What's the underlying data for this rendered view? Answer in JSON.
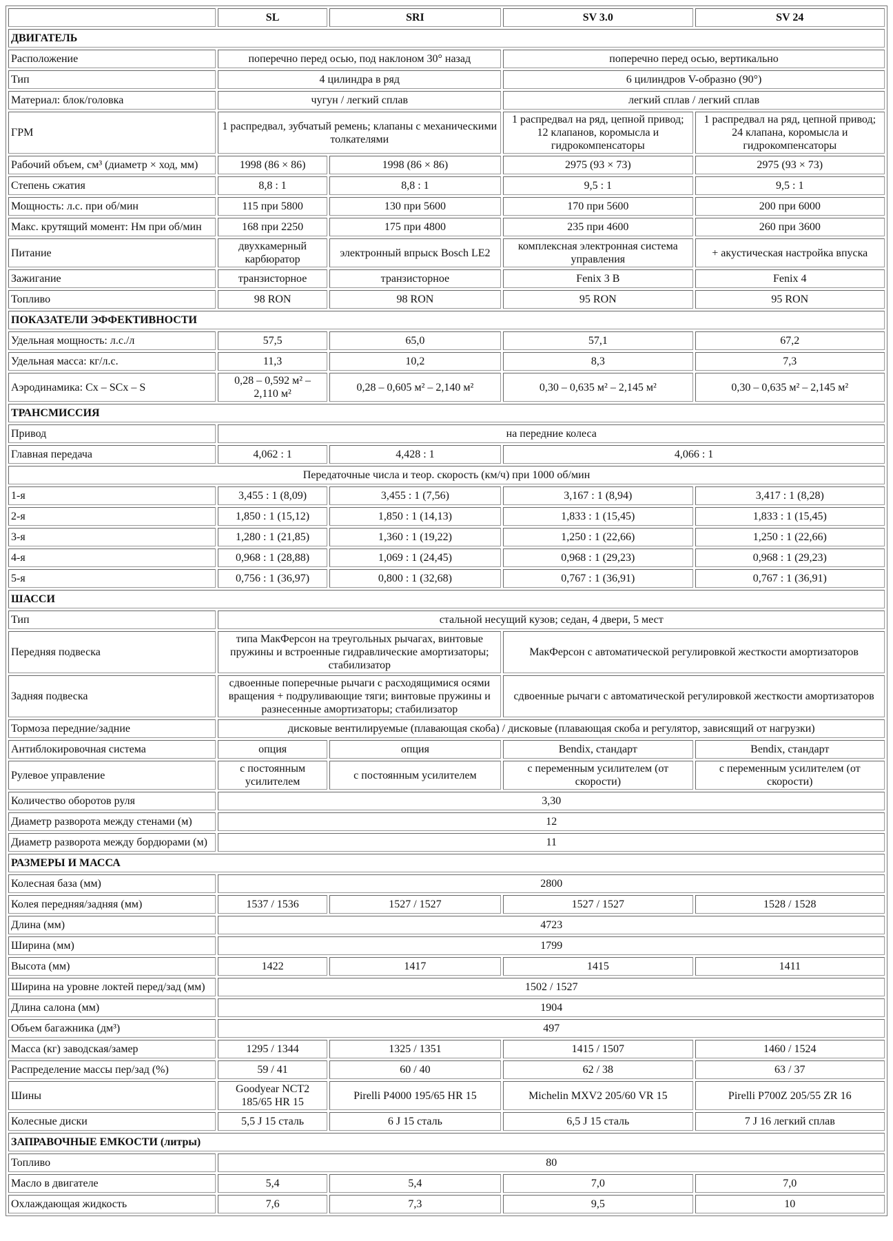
{
  "header": [
    "",
    "SL",
    "SRI",
    "SV 3.0",
    "SV 24"
  ],
  "rows": [
    {
      "section": "ДВИГАТЕЛЬ"
    },
    {
      "label": "Расположение",
      "cells": [
        {
          "t": "поперечно перед осью, под наклоном 30° назад",
          "s": 2
        },
        {
          "t": "поперечно перед осью, вертикально",
          "s": 2
        }
      ]
    },
    {
      "label": "Тип",
      "cells": [
        {
          "t": "4 цилиндра в ряд",
          "s": 2
        },
        {
          "t": "6 цилиндров V-образно (90°)",
          "s": 2
        }
      ]
    },
    {
      "label": "Материал: блок/головка",
      "cells": [
        {
          "t": "чугун / легкий сплав",
          "s": 2
        },
        {
          "t": "легкий сплав / легкий сплав",
          "s": 2
        }
      ]
    },
    {
      "label": "ГРМ",
      "cells": [
        {
          "t": "1 распредвал, зубчатый ремень; клапаны с механическими толкателями",
          "s": 2
        },
        {
          "t": "1 распредвал на ряд, цепной привод; 12 клапанов, коромысла и гидрокомпенсаторы",
          "s": 1
        },
        {
          "t": "1 распредвал на ряд, цепной привод; 24 клапана, коромысла и гидрокомпенсаторы",
          "s": 1
        }
      ]
    },
    {
      "label": "Рабочий объем, см³ (диаметр × ход, мм)",
      "cells": [
        {
          "t": "1998 (86 × 86)",
          "s": 1
        },
        {
          "t": "1998 (86 × 86)",
          "s": 1
        },
        {
          "t": "2975 (93 × 73)",
          "s": 1
        },
        {
          "t": "2975 (93 × 73)",
          "s": 1
        }
      ]
    },
    {
      "label": "Степень сжатия",
      "cells": [
        {
          "t": "8,8 : 1",
          "s": 1
        },
        {
          "t": "8,8 : 1",
          "s": 1
        },
        {
          "t": "9,5 : 1",
          "s": 1
        },
        {
          "t": "9,5 : 1",
          "s": 1
        }
      ]
    },
    {
      "label": "Мощность: л.с. при об/мин",
      "cells": [
        {
          "t": "115 при 5800",
          "s": 1
        },
        {
          "t": "130 при 5600",
          "s": 1
        },
        {
          "t": "170 при 5600",
          "s": 1
        },
        {
          "t": "200 при 6000",
          "s": 1
        }
      ]
    },
    {
      "label": "Макс. крутящий момент: Нм при об/мин",
      "cells": [
        {
          "t": "168 при 2250",
          "s": 1
        },
        {
          "t": "175 при 4800",
          "s": 1
        },
        {
          "t": "235 при 4600",
          "s": 1
        },
        {
          "t": "260 при 3600",
          "s": 1
        }
      ]
    },
    {
      "label": "Питание",
      "cells": [
        {
          "t": "двухкамерный карбюратор",
          "s": 1
        },
        {
          "t": "электронный впрыск Bosch LE2",
          "s": 1
        },
        {
          "t": "комплексная электронная система управления",
          "s": 1
        },
        {
          "t": "+ акустическая настройка впуска",
          "s": 1
        }
      ]
    },
    {
      "label": "Зажигание",
      "cells": [
        {
          "t": "транзисторное",
          "s": 1
        },
        {
          "t": "транзисторное",
          "s": 1
        },
        {
          "t": "Fenix 3 B",
          "s": 1
        },
        {
          "t": "Fenix 4",
          "s": 1
        }
      ]
    },
    {
      "label": "Топливо",
      "cells": [
        {
          "t": "98 RON",
          "s": 1
        },
        {
          "t": "98 RON",
          "s": 1
        },
        {
          "t": "95 RON",
          "s": 1
        },
        {
          "t": "95 RON",
          "s": 1
        }
      ]
    },
    {
      "section": "ПОКАЗАТЕЛИ ЭФФЕКТИВНОСТИ"
    },
    {
      "label": "Удельная мощность: л.с./л",
      "cells": [
        {
          "t": "57,5",
          "s": 1
        },
        {
          "t": "65,0",
          "s": 1
        },
        {
          "t": "57,1",
          "s": 1
        },
        {
          "t": "67,2",
          "s": 1
        }
      ]
    },
    {
      "label": "Удельная масса: кг/л.с.",
      "cells": [
        {
          "t": "11,3",
          "s": 1
        },
        {
          "t": "10,2",
          "s": 1
        },
        {
          "t": "8,3",
          "s": 1
        },
        {
          "t": "7,3",
          "s": 1
        }
      ]
    },
    {
      "label": "Аэродинамика: Cx – SCx – S",
      "cells": [
        {
          "t": "0,28 – 0,592 м² – 2,110 м²",
          "s": 1
        },
        {
          "t": "0,28 – 0,605 м² – 2,140 м²",
          "s": 1
        },
        {
          "t": "0,30 – 0,635 м² – 2,145 м²",
          "s": 1
        },
        {
          "t": "0,30 – 0,635 м² – 2,145 м²",
          "s": 1
        }
      ]
    },
    {
      "section": "ТРАНСМИССИЯ"
    },
    {
      "label": "Привод",
      "cells": [
        {
          "t": "на передние колеса",
          "s": 4
        }
      ]
    },
    {
      "label": "Главная передача",
      "cells": [
        {
          "t": "4,062 : 1",
          "s": 1
        },
        {
          "t": "4,428 : 1",
          "s": 1
        },
        {
          "t": "4,066 : 1",
          "s": 2
        }
      ]
    },
    {
      "subheader": "Передаточные числа и теор. скорость (км/ч) при 1000 об/мин"
    },
    {
      "label": "1-я",
      "cells": [
        {
          "t": "3,455 : 1 (8,09)",
          "s": 1
        },
        {
          "t": "3,455 : 1 (7,56)",
          "s": 1
        },
        {
          "t": "3,167 : 1 (8,94)",
          "s": 1
        },
        {
          "t": "3,417 : 1 (8,28)",
          "s": 1
        }
      ]
    },
    {
      "label": "2-я",
      "cells": [
        {
          "t": "1,850 : 1 (15,12)",
          "s": 1
        },
        {
          "t": "1,850 : 1 (14,13)",
          "s": 1
        },
        {
          "t": "1,833 : 1 (15,45)",
          "s": 1
        },
        {
          "t": "1,833 : 1 (15,45)",
          "s": 1
        }
      ]
    },
    {
      "label": "3-я",
      "cells": [
        {
          "t": "1,280 : 1 (21,85)",
          "s": 1
        },
        {
          "t": "1,360 : 1 (19,22)",
          "s": 1
        },
        {
          "t": "1,250 : 1 (22,66)",
          "s": 1
        },
        {
          "t": "1,250 : 1 (22,66)",
          "s": 1
        }
      ]
    },
    {
      "label": "4-я",
      "cells": [
        {
          "t": "0,968 : 1 (28,88)",
          "s": 1
        },
        {
          "t": "1,069 : 1 (24,45)",
          "s": 1
        },
        {
          "t": "0,968 : 1 (29,23)",
          "s": 1
        },
        {
          "t": "0,968 : 1 (29,23)",
          "s": 1
        }
      ]
    },
    {
      "label": "5-я",
      "cells": [
        {
          "t": "0,756 : 1 (36,97)",
          "s": 1
        },
        {
          "t": "0,800 : 1 (32,68)",
          "s": 1
        },
        {
          "t": "0,767 : 1 (36,91)",
          "s": 1
        },
        {
          "t": "0,767 : 1 (36,91)",
          "s": 1
        }
      ]
    },
    {
      "section": "ШАССИ"
    },
    {
      "label": "Тип",
      "cells": [
        {
          "t": "стальной несущий кузов; седан, 4 двери, 5 мест",
          "s": 4
        }
      ]
    },
    {
      "label": "Передняя подвеска",
      "cells": [
        {
          "t": "типа МакФерсон на треугольных рычагах, винтовые пружины и встроенные гидравлические амортизаторы; стабилизатор",
          "s": 2
        },
        {
          "t": "МакФерсон с автоматической регулировкой жесткости амортизаторов",
          "s": 2
        }
      ]
    },
    {
      "label": "Задняя подвеска",
      "cells": [
        {
          "t": "сдвоенные поперечные рычаги с расходящимися осями вращения + подруливающие тяги; винтовые пружины и разнесенные амортизаторы; стабилизатор",
          "s": 2
        },
        {
          "t": "сдвоенные рычаги с автоматической регулировкой жесткости амортизаторов",
          "s": 2
        }
      ]
    },
    {
      "label": "Тормоза передние/задние",
      "cells": [
        {
          "t": "дисковые вентилируемые (плавающая скоба) / дисковые (плавающая скоба и регулятор, зависящий от нагрузки)",
          "s": 4
        }
      ]
    },
    {
      "label": "Антиблокировочная система",
      "cells": [
        {
          "t": "опция",
          "s": 1
        },
        {
          "t": "опция",
          "s": 1
        },
        {
          "t": "Bendix, стандарт",
          "s": 1
        },
        {
          "t": "Bendix, стандарт",
          "s": 1
        }
      ]
    },
    {
      "label": "Рулевое управление",
      "cells": [
        {
          "t": "с постоянным усилителем",
          "s": 1
        },
        {
          "t": "с постоянным усилителем",
          "s": 1
        },
        {
          "t": "с переменным усилителем (от скорости)",
          "s": 1
        },
        {
          "t": "с переменным усилителем (от скорости)",
          "s": 1
        }
      ]
    },
    {
      "label": "Количество оборотов руля",
      "cells": [
        {
          "t": "3,30",
          "s": 4
        }
      ]
    },
    {
      "label": "Диаметр разворота между стенами (м)",
      "cells": [
        {
          "t": "12",
          "s": 4
        }
      ]
    },
    {
      "label": "Диаметр разворота между бордюрами (м)",
      "cells": [
        {
          "t": "11",
          "s": 4
        }
      ]
    },
    {
      "section": "РАЗМЕРЫ И МАССА"
    },
    {
      "label": "Колесная база (мм)",
      "cells": [
        {
          "t": "2800",
          "s": 4
        }
      ]
    },
    {
      "label": "Колея передняя/задняя (мм)",
      "cells": [
        {
          "t": "1537 / 1536",
          "s": 1
        },
        {
          "t": "1527 / 1527",
          "s": 1
        },
        {
          "t": "1527 / 1527",
          "s": 1
        },
        {
          "t": "1528 / 1528",
          "s": 1
        }
      ]
    },
    {
      "label": "Длина (мм)",
      "cells": [
        {
          "t": "4723",
          "s": 4
        }
      ]
    },
    {
      "label": "Ширина (мм)",
      "cells": [
        {
          "t": "1799",
          "s": 4
        }
      ]
    },
    {
      "label": "Высота (мм)",
      "cells": [
        {
          "t": "1422",
          "s": 1
        },
        {
          "t": "1417",
          "s": 1
        },
        {
          "t": "1415",
          "s": 1
        },
        {
          "t": "1411",
          "s": 1
        }
      ]
    },
    {
      "label": "Ширина на уровне локтей перед/зад (мм)",
      "cells": [
        {
          "t": "1502 / 1527",
          "s": 4
        }
      ]
    },
    {
      "label": "Длина салона (мм)",
      "cells": [
        {
          "t": "1904",
          "s": 4
        }
      ]
    },
    {
      "label": "Объем багажника (дм³)",
      "cells": [
        {
          "t": "497",
          "s": 4
        }
      ]
    },
    {
      "label": "Масса (кг) заводская/замер",
      "cells": [
        {
          "t": "1295 / 1344",
          "s": 1
        },
        {
          "t": "1325 / 1351",
          "s": 1
        },
        {
          "t": "1415 / 1507",
          "s": 1
        },
        {
          "t": "1460 / 1524",
          "s": 1
        }
      ]
    },
    {
      "label": "Распределение массы пер/зад (%)",
      "cells": [
        {
          "t": "59 / 41",
          "s": 1
        },
        {
          "t": "60 / 40",
          "s": 1
        },
        {
          "t": "62 / 38",
          "s": 1
        },
        {
          "t": "63 / 37",
          "s": 1
        }
      ]
    },
    {
      "label": "Шины",
      "cells": [
        {
          "t": "Goodyear NCT2 185/65 HR 15",
          "s": 1
        },
        {
          "t": "Pirelli P4000 195/65 HR 15",
          "s": 1
        },
        {
          "t": "Michelin MXV2 205/60 VR 15",
          "s": 1
        },
        {
          "t": "Pirelli P700Z 205/55 ZR 16",
          "s": 1
        }
      ]
    },
    {
      "label": "Колесные диски",
      "cells": [
        {
          "t": "5,5 J 15 сталь",
          "s": 1
        },
        {
          "t": "6 J 15 сталь",
          "s": 1
        },
        {
          "t": "6,5 J 15 сталь",
          "s": 1
        },
        {
          "t": "7 J 16 легкий сплав",
          "s": 1
        }
      ]
    },
    {
      "section": "ЗАПРАВОЧНЫЕ ЕМКОСТИ (литры)"
    },
    {
      "label": "Топливо",
      "cells": [
        {
          "t": "80",
          "s": 4
        }
      ]
    },
    {
      "label": "Масло в двигателе",
      "cells": [
        {
          "t": "5,4",
          "s": 1
        },
        {
          "t": "5,4",
          "s": 1
        },
        {
          "t": "7,0",
          "s": 1
        },
        {
          "t": "7,0",
          "s": 1
        }
      ]
    },
    {
      "label": "Охлаждающая жидкость",
      "cells": [
        {
          "t": "7,6",
          "s": 1
        },
        {
          "t": "7,3",
          "s": 1
        },
        {
          "t": "9,5",
          "s": 1
        },
        {
          "t": "10",
          "s": 1
        }
      ]
    }
  ]
}
